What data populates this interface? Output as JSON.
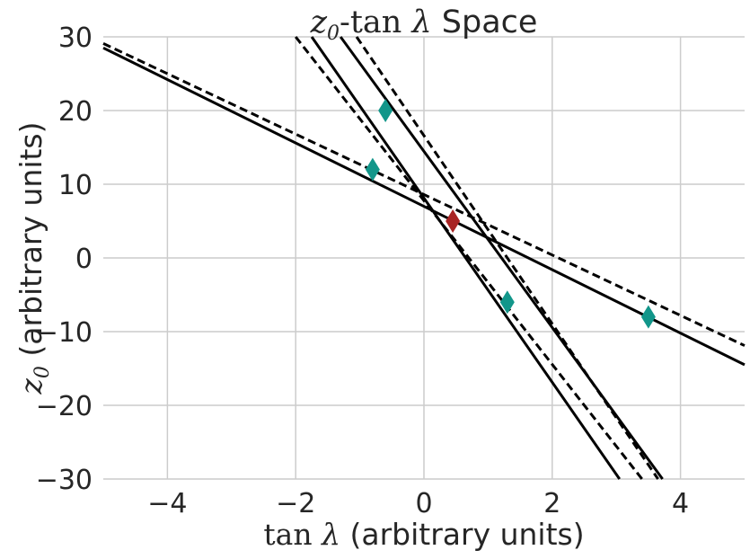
{
  "chart_data": {
    "type": "line",
    "title": {
      "math_z": "z",
      "math_sub": "0",
      "math_tan": "-tan ",
      "math_lambda": "λ",
      "text": " Space"
    },
    "xlabel": {
      "math_tan": "tan ",
      "math_lambda": "λ",
      "text": " (arbitrary units)"
    },
    "ylabel": {
      "math_z": "z",
      "math_sub": "0",
      "text": " (arbitrary units)"
    },
    "xlim": [
      -5,
      5
    ],
    "ylim": [
      -30,
      30
    ],
    "xticks": [
      -4,
      -2,
      0,
      2,
      4
    ],
    "yticks": [
      30,
      20,
      10,
      0,
      -10,
      -20,
      -30
    ],
    "grid": true,
    "lines": [
      {
        "style": "solid",
        "x": [
          -5,
          5
        ],
        "y": [
          28.5,
          -14.5
        ]
      },
      {
        "style": "solid",
        "x": [
          -1.75,
          3.05
        ],
        "y": [
          30,
          -30
        ]
      },
      {
        "style": "solid",
        "x": [
          -1.3,
          3.72
        ],
        "y": [
          30,
          -30
        ]
      },
      {
        "style": "dashed",
        "x": [
          -5,
          5
        ],
        "y": [
          29.1,
          -11.9
        ]
      },
      {
        "style": "dashed",
        "x": [
          -2.0,
          3.4
        ],
        "y": [
          30,
          -30
        ]
      },
      {
        "style": "dashed",
        "x": [
          -1.05,
          3.65
        ],
        "y": [
          30,
          -30
        ]
      }
    ],
    "points": [
      {
        "x": -0.8,
        "y": 12,
        "color": "#12968a"
      },
      {
        "x": -0.6,
        "y": 20,
        "color": "#12968a"
      },
      {
        "x": 1.3,
        "y": -6,
        "color": "#12968a"
      },
      {
        "x": 3.5,
        "y": -8,
        "color": "#12968a"
      },
      {
        "x": 0.45,
        "y": 5,
        "color": "#a82424"
      }
    ]
  }
}
